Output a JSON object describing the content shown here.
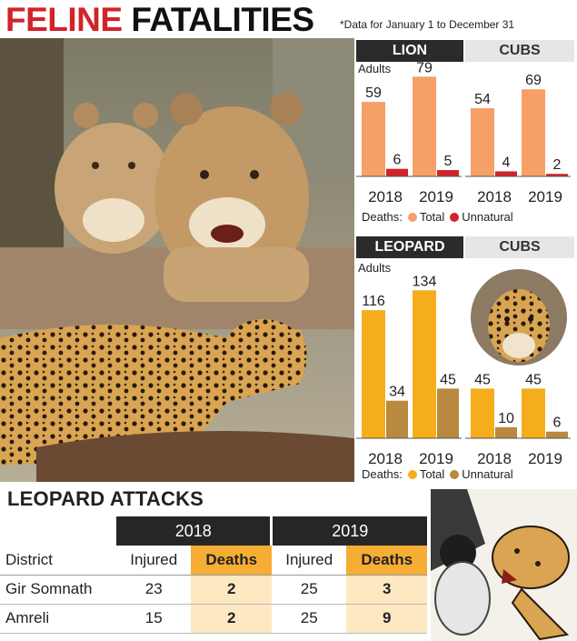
{
  "title": {
    "part1": "FELINE",
    "part2": "FATALITIES"
  },
  "note": "*Data for January 1 to December 31",
  "lion": {
    "header": "LION",
    "cubs_header": "CUBS",
    "adults_label": "Adults",
    "legend_label": "Deaths:",
    "legend_total": "Total",
    "legend_unnatural": "Unnatural"
  },
  "leopard": {
    "header": "LEOPARD",
    "cubs_header": "CUBS",
    "adults_label": "Adults",
    "legend_label": "Deaths:",
    "legend_total": "Total",
    "legend_unnatural": "Unnatural"
  },
  "colors": {
    "lion_total": "#f6a068",
    "lion_unnatural": "#d2232a",
    "leopard_total": "#f6ad1c",
    "leopard_unnatural": "#b8893f",
    "dark_header": "#2b2b2b",
    "deaths_highlight": "#f6ad34"
  },
  "chart_data": [
    {
      "type": "bar",
      "id": "lion-adults",
      "categories": [
        "2018",
        "2019"
      ],
      "series": [
        {
          "name": "Total",
          "values": [
            59,
            79
          ]
        },
        {
          "name": "Unnatural",
          "values": [
            6,
            5
          ]
        }
      ],
      "ylim": [
        0,
        85
      ]
    },
    {
      "type": "bar",
      "id": "lion-cubs",
      "categories": [
        "2018",
        "2019"
      ],
      "series": [
        {
          "name": "Total",
          "values": [
            54,
            69
          ]
        },
        {
          "name": "Unnatural",
          "values": [
            4,
            2
          ]
        }
      ],
      "ylim": [
        0,
        85
      ]
    },
    {
      "type": "bar",
      "id": "leopard-adults",
      "categories": [
        "2018",
        "2019"
      ],
      "series": [
        {
          "name": "Total",
          "values": [
            116,
            134
          ]
        },
        {
          "name": "Unnatural",
          "values": [
            34,
            45
          ]
        }
      ],
      "ylim": [
        0,
        140
      ]
    },
    {
      "type": "bar",
      "id": "leopard-cubs",
      "categories": [
        "2018",
        "2019"
      ],
      "series": [
        {
          "name": "Total",
          "values": [
            45,
            45
          ]
        },
        {
          "name": "Unnatural",
          "values": [
            10,
            6
          ]
        }
      ],
      "ylim": [
        0,
        140
      ]
    }
  ],
  "attacks": {
    "title": "LEOPARD ATTACKS",
    "years": [
      "2018",
      "2019"
    ],
    "columns": {
      "district": "District",
      "injured": "Injured",
      "deaths": "Deaths"
    },
    "rows": [
      {
        "district": "Gir Somnath",
        "injured_2018": "23",
        "deaths_2018": "2",
        "injured_2019": "25",
        "deaths_2019": "3"
      },
      {
        "district": "Amreli",
        "injured_2018": "15",
        "deaths_2018": "2",
        "injured_2019": "25",
        "deaths_2019": "9"
      }
    ]
  },
  "icons": {
    "main_photo": "lions-and-leopard-photo",
    "cub_photo": "leopard-cub-photo",
    "cartoon": "leopard-attack-cartoon"
  }
}
